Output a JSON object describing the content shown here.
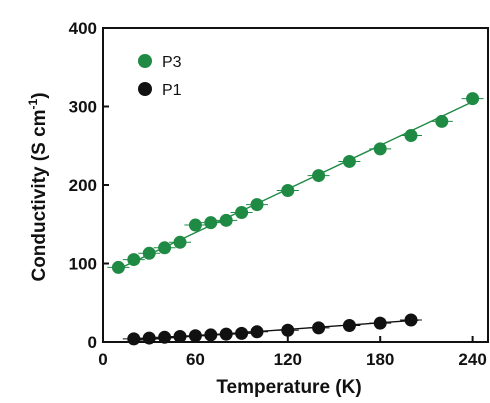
{
  "chart_data": {
    "type": "scatter",
    "xlabel": "Temperature (K)",
    "ylabel_main": "Conductivity (S cm",
    "ylabel_sup": "-1",
    "ylabel_close": ")",
    "xlim": [
      0,
      250
    ],
    "ylim": [
      0,
      400
    ],
    "xticks": [
      0,
      60,
      120,
      180,
      240
    ],
    "yticks": [
      0,
      100,
      200,
      300,
      400
    ],
    "grid": false,
    "legend_position": "top-left",
    "series": [
      {
        "name": "P3",
        "color": "#1e8a44",
        "x": [
          10,
          20,
          30,
          40,
          50,
          60,
          70,
          80,
          90,
          100,
          120,
          140,
          160,
          180,
          200,
          220,
          240
        ],
        "y": [
          95,
          105,
          113,
          120,
          127,
          149,
          152,
          155,
          165,
          175,
          193,
          212,
          230,
          246,
          263,
          281,
          310
        ],
        "fit": {
          "x": [
            10,
            240
          ],
          "y": [
            93,
            306
          ]
        }
      },
      {
        "name": "P1",
        "color": "#111111",
        "x": [
          20,
          30,
          40,
          50,
          60,
          70,
          80,
          90,
          100,
          120,
          140,
          160,
          180,
          200
        ],
        "y": [
          4,
          5,
          6,
          7,
          8,
          9,
          10,
          11,
          13,
          15,
          18,
          21,
          24,
          28
        ],
        "fit": {
          "x": [
            20,
            205
          ],
          "y": [
            2,
            28
          ]
        }
      }
    ]
  }
}
